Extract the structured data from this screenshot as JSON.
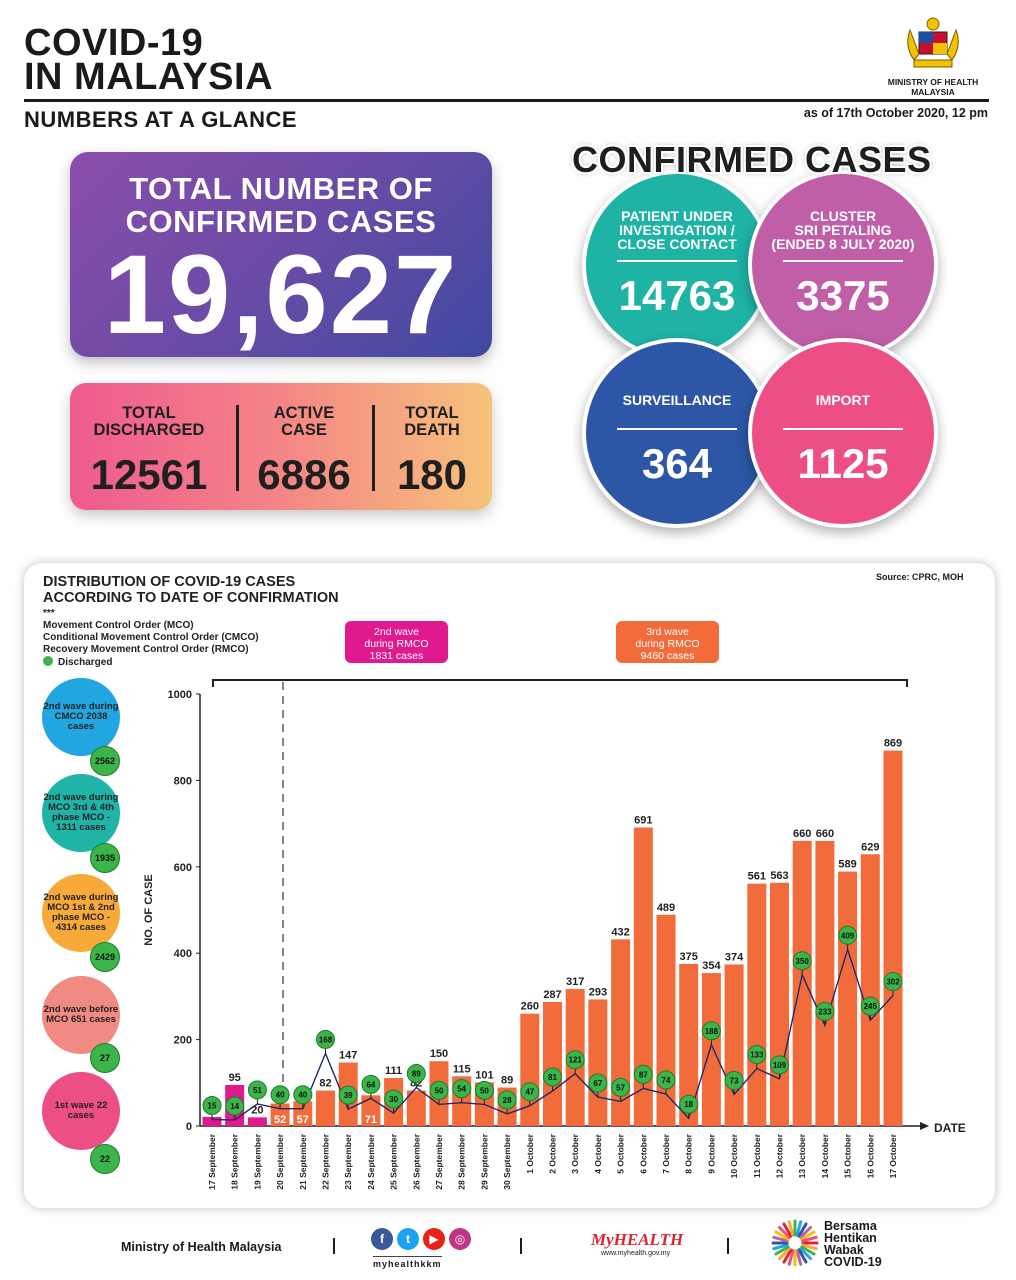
{
  "header": {
    "title_line1": "COVID-19",
    "title_line2": "IN MALAYSIA",
    "subtitle": "NUMBERS AT A GLANCE",
    "as_of": "as of 17th October 2020, 12 pm",
    "ministry_line1": "MINISTRY OF HEALTH",
    "ministry_line2": "MALAYSIA"
  },
  "total": {
    "label_line1": "TOTAL NUMBER OF",
    "label_line2": "CONFIRMED CASES",
    "value": "19,627"
  },
  "stats": {
    "discharged_label1": "TOTAL",
    "discharged_label2": "DISCHARGED",
    "discharged_value": "12561",
    "active_label1": "ACTIVE",
    "active_label2": "CASE",
    "active_value": "6886",
    "death_label1": "TOTAL",
    "death_label2": "DEATH",
    "death_value": "180"
  },
  "confirmed": {
    "title": "CONFIRMED CASES",
    "pui_label1": "PATIENT UNDER",
    "pui_label2": "INVESTIGATION /",
    "pui_label3": "CLOSE CONTACT",
    "pui_value": "14763",
    "cluster_label1": "CLUSTER",
    "cluster_label2": "SRI PETALING",
    "cluster_label3": "(ENDED 8 JULY 2020)",
    "cluster_value": "3375",
    "surveillance_label": "SURVEILLANCE",
    "surveillance_value": "364",
    "import_label": "IMPORT",
    "import_value": "1125"
  },
  "colors": {
    "bar_orange": "#f26b3a",
    "bar_magenta": "#e0198e",
    "discharged_green": "#3bb54a",
    "line_navy": "#1f2a6e",
    "pui_teal": "#1fb3a5",
    "cluster_pink": "#c05fa8",
    "surveillance_blue": "#2d56a6",
    "import_pink": "#ee4e86"
  },
  "chart_panel": {
    "title_line1": "DISTRIBUTION OF COVID-19 CASES",
    "title_line2": "ACCORDING TO DATE OF CONFIRMATION",
    "source": "Source: CPRC, MOH",
    "legend_stars": "***",
    "legend_mco": "Movement Control Order (MCO)",
    "legend_cmco": "Conditional Movement Control Order (CMCO)",
    "legend_rmco": "Recovery Movement Control Order (RMCO)",
    "legend_discharged": "Discharged",
    "wave2_rmco_line1": "2nd wave",
    "wave2_rmco_line2": "during RMCO",
    "wave2_rmco_line3": "1831 cases",
    "wave3_rmco_line1": "3rd wave",
    "wave3_rmco_line2": "during RMCO",
    "wave3_rmco_line3": "9460 cases"
  },
  "side_waves": [
    {
      "text": "2nd wave during CMCO 2038 cases",
      "color": "#22a6e0",
      "discharged": "2562"
    },
    {
      "text": "2nd wave during MCO 3rd & 4th phase MCO - 1311 cases",
      "color": "#20b3a8",
      "discharged": "1935"
    },
    {
      "text": "2nd wave during MCO 1st & 2nd phase MCO - 4314 cases",
      "color": "#f7a93a",
      "discharged": "2429"
    },
    {
      "text": "2nd wave before MCO 651 cases",
      "color": "#f08a82",
      "discharged": "27"
    },
    {
      "text": "1st wave 22 cases",
      "color": "#ec4f86",
      "discharged": "22"
    }
  ],
  "chart_data": {
    "type": "bar",
    "ylabel": "NO. OF CASE",
    "xlabel": "DATE",
    "ylim": [
      0,
      1000
    ],
    "yticks": [
      0,
      200,
      400,
      600,
      800,
      1000
    ],
    "categories": [
      "17 September",
      "18 September",
      "19 September",
      "20 September",
      "21 September",
      "22 September",
      "23 September",
      "24 September",
      "25 September",
      "26 September",
      "27 September",
      "28 September",
      "29 September",
      "30 September",
      "1 October",
      "2 October",
      "3 October",
      "4 October",
      "5 October",
      "6 October",
      "7 October",
      "8 October",
      "9 October",
      "10 October",
      "11 October",
      "12 October",
      "13 October",
      "14 October",
      "15 October",
      "16 October",
      "17 October"
    ],
    "series": [
      {
        "name": "cases",
        "values": [
          21,
          95,
          20,
          52,
          57,
          82,
          147,
          71,
          111,
          82,
          150,
          115,
          101,
          89,
          260,
          287,
          317,
          293,
          432,
          691,
          489,
          375,
          354,
          374,
          561,
          563,
          660,
          660,
          589,
          629,
          869
        ]
      },
      {
        "name": "Discharged",
        "values": [
          15,
          14,
          51,
          40,
          40,
          168,
          39,
          64,
          30,
          89,
          50,
          54,
          50,
          28,
          47,
          81,
          121,
          67,
          57,
          87,
          74,
          18,
          188,
          73,
          133,
          109,
          350,
          233,
          409,
          245,
          302
        ]
      }
    ]
  },
  "footer": {
    "ministry": "Ministry of Health Malaysia",
    "handle": "myhealthkkm",
    "myhealth": "MyHEALTH",
    "myhealth_url": "www.myhealth.gov.my",
    "bersama_line1": "Bersama",
    "bersama_line2": "Hentikan",
    "bersama_line3": "Wabak",
    "bersama_line4": "COVID-19"
  }
}
